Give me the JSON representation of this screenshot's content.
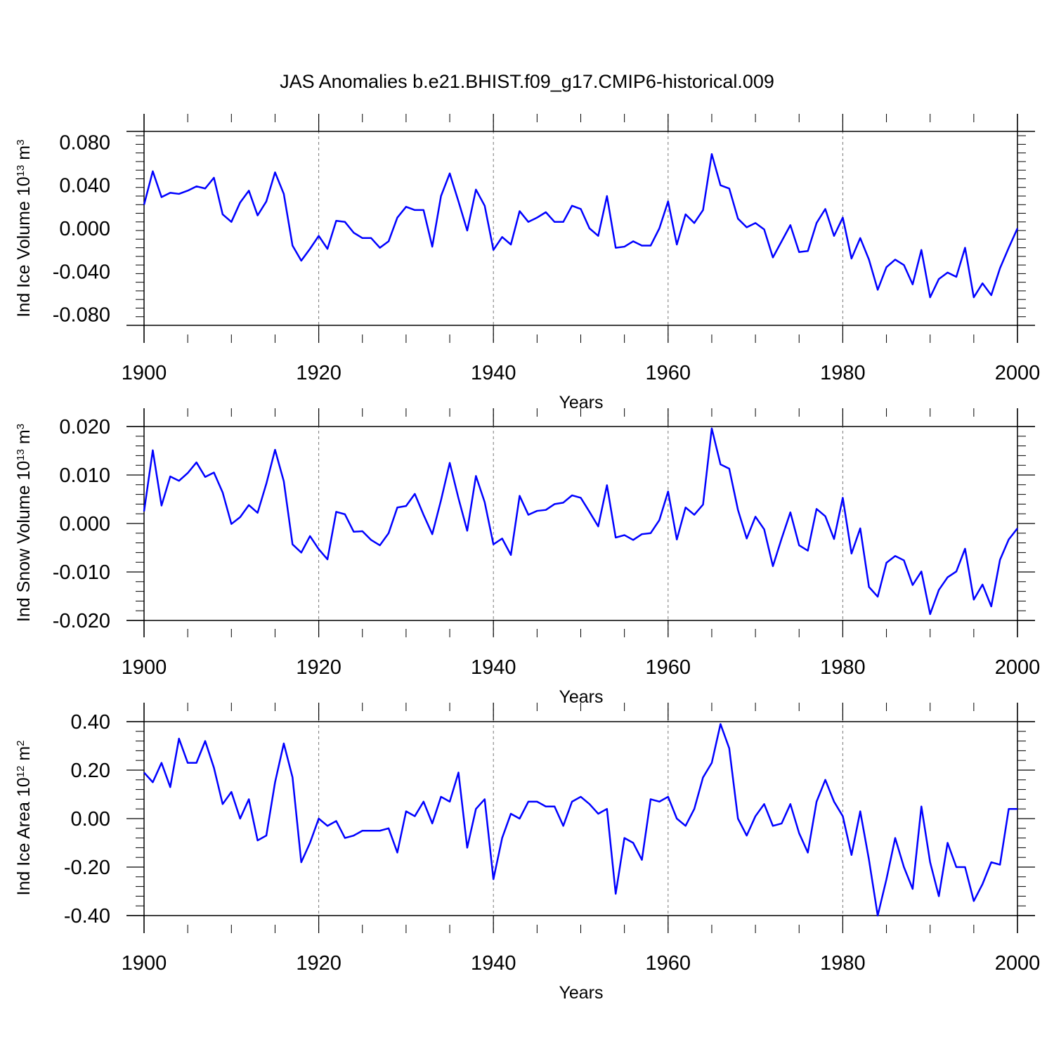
{
  "figure_title": "JAS Anomalies b.e21.BHIST.f09_g17.CMIP6-historical.009",
  "line_color": "#0000ff",
  "chart_data": [
    {
      "type": "line",
      "title": "JAS Anomalies b.e21.BHIST.f09_g17.CMIP6-historical.009",
      "ylabel_text": "Ind Ice Volume 10",
      "ylabel_exp": "13",
      "ylabel_unit": " m",
      "ylabel_unit_exp": "3",
      "xlabel": "Years",
      "xlim": [
        1900,
        2000
      ],
      "ylim": [
        -0.09,
        0.09
      ],
      "xticks": [
        1900,
        1920,
        1940,
        1960,
        1980,
        2000
      ],
      "yticks": [
        -0.08,
        -0.04,
        0.0,
        0.04,
        0.08
      ],
      "ytick_labels": [
        "-0.080",
        "-0.040",
        "0.000",
        "0.040",
        "0.080"
      ],
      "grid": "vertical dashed at major x ticks",
      "x_start": 1900,
      "values": [
        0.022,
        0.053,
        0.029,
        0.033,
        0.032,
        0.035,
        0.039,
        0.037,
        0.047,
        0.013,
        0.006,
        0.024,
        0.035,
        0.012,
        0.025,
        0.052,
        0.032,
        -0.016,
        -0.03,
        -0.019,
        -0.007,
        -0.019,
        0.007,
        0.006,
        -0.004,
        -0.009,
        -0.009,
        -0.018,
        -0.012,
        0.01,
        0.02,
        0.017,
        0.017,
        -0.017,
        0.03,
        0.051,
        0.025,
        -0.002,
        0.036,
        0.021,
        -0.02,
        -0.008,
        -0.015,
        0.016,
        0.006,
        0.01,
        0.015,
        0.006,
        0.006,
        0.021,
        0.018,
        0.0,
        -0.007,
        0.03,
        -0.018,
        -0.017,
        -0.012,
        -0.016,
        -0.016,
        0.0,
        0.025,
        -0.015,
        0.013,
        0.005,
        0.017,
        0.069,
        0.04,
        0.037,
        0.009,
        0.001,
        0.005,
        -0.001,
        -0.027,
        -0.012,
        0.003,
        -0.022,
        -0.021,
        0.005,
        0.018,
        -0.007,
        0.01,
        -0.028,
        -0.009,
        -0.029,
        -0.057,
        -0.036,
        -0.029,
        -0.034,
        -0.052,
        -0.02,
        -0.064,
        -0.047,
        -0.041,
        -0.045,
        -0.018,
        -0.064,
        -0.051,
        -0.062,
        -0.037,
        -0.018,
        0.0
      ]
    },
    {
      "type": "line",
      "title": "",
      "ylabel_text": "Ind Snow Volume 10",
      "ylabel_exp": "13",
      "ylabel_unit": " m",
      "ylabel_unit_exp": "3",
      "xlabel": "Years",
      "xlim": [
        1900,
        2000
      ],
      "ylim": [
        -0.02,
        0.02
      ],
      "xticks": [
        1900,
        1920,
        1940,
        1960,
        1980,
        2000
      ],
      "yticks": [
        -0.02,
        -0.01,
        0.0,
        0.01,
        0.02
      ],
      "ytick_labels": [
        "-0.020",
        "-0.010",
        "0.000",
        "0.010",
        "0.020"
      ],
      "grid": "vertical dashed at major x ticks",
      "x_start": 1900,
      "values": [
        0.0025,
        0.0151,
        0.0037,
        0.0097,
        0.0088,
        0.0104,
        0.0126,
        0.0096,
        0.0105,
        0.0064,
        -0.0001,
        0.0013,
        0.0038,
        0.0022,
        0.0082,
        0.0152,
        0.0087,
        -0.0043,
        -0.006,
        -0.0026,
        -0.0053,
        -0.0074,
        0.0024,
        0.0019,
        -0.0017,
        -0.0016,
        -0.0034,
        -0.0045,
        -0.002,
        0.0033,
        0.0036,
        0.0061,
        0.0018,
        -0.0022,
        0.0048,
        0.0125,
        0.0052,
        -0.0015,
        0.0098,
        0.0044,
        -0.0043,
        -0.0031,
        -0.0065,
        0.0057,
        0.0018,
        0.0026,
        0.0028,
        0.004,
        0.0043,
        0.0058,
        0.0053,
        0.0024,
        -0.0006,
        0.0079,
        -0.0029,
        -0.0024,
        -0.0034,
        -0.0022,
        -0.002,
        0.0007,
        0.0066,
        -0.0033,
        0.0033,
        0.0018,
        0.0039,
        0.0196,
        0.0122,
        0.0113,
        0.0028,
        -0.0031,
        0.0014,
        -0.0012,
        -0.0088,
        -0.0031,
        0.0023,
        -0.0045,
        -0.0056,
        0.003,
        0.0015,
        -0.0032,
        0.0053,
        -0.0062,
        -0.001,
        -0.0131,
        -0.0151,
        -0.0081,
        -0.0067,
        -0.0076,
        -0.0127,
        -0.0099,
        -0.0187,
        -0.0137,
        -0.0111,
        -0.0099,
        -0.0052,
        -0.0157,
        -0.0126,
        -0.0171,
        -0.0075,
        -0.0033,
        -0.001
      ]
    },
    {
      "type": "line",
      "title": "",
      "ylabel_text": "Ind Ice Area 10",
      "ylabel_exp": "12",
      "ylabel_unit": " m",
      "ylabel_unit_exp": "2",
      "xlabel": "Years",
      "xlim": [
        1900,
        2000
      ],
      "ylim": [
        -0.4,
        0.4
      ],
      "xticks": [
        1900,
        1920,
        1940,
        1960,
        1980,
        2000
      ],
      "yticks": [
        -0.4,
        -0.2,
        0.0,
        0.2,
        0.4
      ],
      "ytick_labels": [
        "-0.40",
        "-0.20",
        "0.00",
        "0.20",
        "0.40"
      ],
      "grid": "vertical dashed at major x ticks",
      "x_start": 1900,
      "values": [
        0.19,
        0.15,
        0.23,
        0.13,
        0.33,
        0.23,
        0.23,
        0.32,
        0.21,
        0.06,
        0.11,
        0.0,
        0.08,
        -0.09,
        -0.07,
        0.15,
        0.31,
        0.17,
        -0.18,
        -0.1,
        0.0,
        -0.03,
        -0.01,
        -0.08,
        -0.07,
        -0.05,
        -0.05,
        -0.05,
        -0.04,
        -0.14,
        0.03,
        0.01,
        0.07,
        -0.02,
        0.09,
        0.07,
        0.19,
        -0.12,
        0.04,
        0.08,
        -0.25,
        -0.08,
        0.02,
        0.0,
        0.07,
        0.07,
        0.05,
        0.05,
        -0.03,
        0.07,
        0.09,
        0.06,
        0.02,
        0.04,
        -0.31,
        -0.08,
        -0.1,
        -0.17,
        0.08,
        0.07,
        0.09,
        0.0,
        -0.03,
        0.04,
        0.17,
        0.23,
        0.39,
        0.29,
        0.0,
        -0.07,
        0.01,
        0.06,
        -0.03,
        -0.02,
        0.06,
        -0.06,
        -0.14,
        0.07,
        0.16,
        0.07,
        0.01,
        -0.15,
        0.03,
        -0.17,
        -0.4,
        -0.25,
        -0.08,
        -0.2,
        -0.29,
        0.05,
        -0.18,
        -0.32,
        -0.1,
        -0.2,
        -0.2,
        -0.34,
        -0.27,
        -0.18,
        -0.19,
        0.04,
        0.04
      ]
    }
  ]
}
